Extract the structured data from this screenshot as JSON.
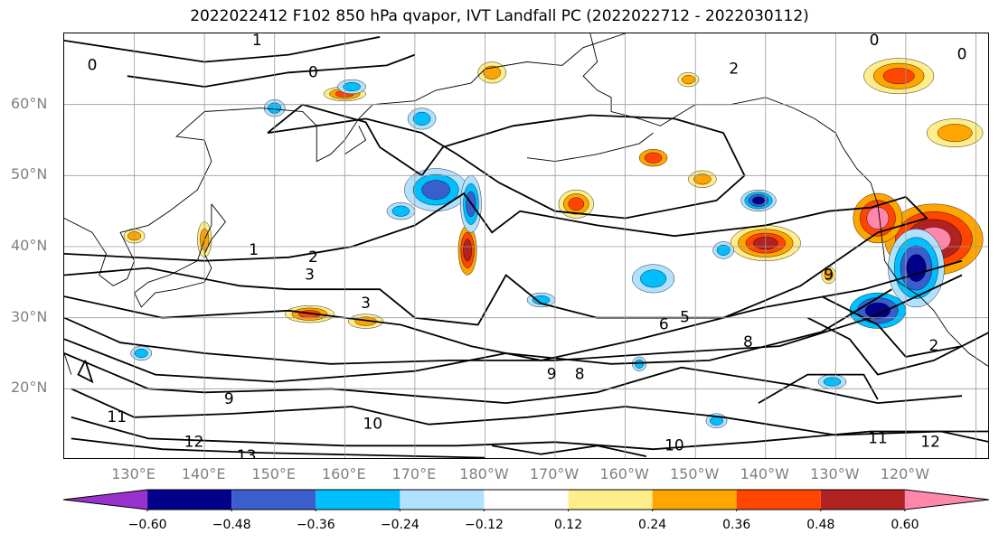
{
  "title": "2022022412 F102 850 hPa qvapor, IVT Landfall PC (2022022712 - 2022030112)",
  "map": {
    "lat_labels": [
      "60°N",
      "50°N",
      "40°N",
      "30°N",
      "20°N"
    ],
    "lon_labels": [
      "130°E",
      "140°E",
      "150°E",
      "160°E",
      "170°E",
      "180°W",
      "170°W",
      "160°W",
      "150°W",
      "140°W",
      "130°W",
      "120°W"
    ],
    "extent": {
      "lon_min": 120,
      "lon_max": 252,
      "lat_min": 10,
      "lat_max": 70
    },
    "gridlines": true,
    "contour_labels": [
      {
        "text": "1",
        "lon": 147.5,
        "lat": 69.0
      },
      {
        "text": "0",
        "lon": 124.0,
        "lat": 65.5
      },
      {
        "text": "0",
        "lon": 155.5,
        "lat": 64.5
      },
      {
        "text": "0",
        "lon": 235.5,
        "lat": 69.0
      },
      {
        "text": "0",
        "lon": 248.0,
        "lat": 67.0
      },
      {
        "text": "2",
        "lon": 215.5,
        "lat": 65.0
      },
      {
        "text": "1",
        "lon": 147.0,
        "lat": 39.5
      },
      {
        "text": "2",
        "lon": 155.5,
        "lat": 38.5
      },
      {
        "text": "3",
        "lon": 155.0,
        "lat": 36.0
      },
      {
        "text": "3",
        "lon": 163.0,
        "lat": 32.0
      },
      {
        "text": "6",
        "lon": 205.5,
        "lat": 29.0
      },
      {
        "text": "5",
        "lon": 208.5,
        "lat": 30.0
      },
      {
        "text": "8",
        "lon": 217.5,
        "lat": 26.5
      },
      {
        "text": "9",
        "lon": 143.5,
        "lat": 18.5
      },
      {
        "text": "9",
        "lon": 189.5,
        "lat": 22.0
      },
      {
        "text": "8",
        "lon": 193.5,
        "lat": 22.0
      },
      {
        "text": "9",
        "lon": 229.0,
        "lat": 36.0
      },
      {
        "text": "2",
        "lon": 244.0,
        "lat": 26.0
      },
      {
        "text": "10",
        "lon": 164.0,
        "lat": 15.0
      },
      {
        "text": "11",
        "lon": 127.5,
        "lat": 16.0
      },
      {
        "text": "12",
        "lon": 138.5,
        "lat": 12.5
      },
      {
        "text": "13",
        "lon": 146.0,
        "lat": 10.5
      },
      {
        "text": "10",
        "lon": 207.0,
        "lat": 12.0
      },
      {
        "text": "11",
        "lon": 236.0,
        "lat": 13.0
      },
      {
        "text": "12",
        "lon": 243.5,
        "lat": 12.5
      }
    ]
  },
  "colorbar": {
    "levels": [
      -0.72,
      -0.6,
      -0.48,
      -0.36,
      -0.24,
      -0.12,
      0.12,
      0.24,
      0.36,
      0.48,
      0.6,
      0.72
    ],
    "colors": [
      "#9932cc",
      "#00008b",
      "#3a5fcd",
      "#00bfff",
      "#b0e2ff",
      "#ffffff",
      "#ffec8b",
      "#ffa500",
      "#ff4500",
      "#b22222",
      "#ff88aa"
    ],
    "tick_labels": [
      "−0.60",
      "−0.48",
      "−0.36",
      "−0.24",
      "−0.12",
      "0.12",
      "0.24",
      "0.36",
      "0.48",
      "0.60"
    ]
  }
}
